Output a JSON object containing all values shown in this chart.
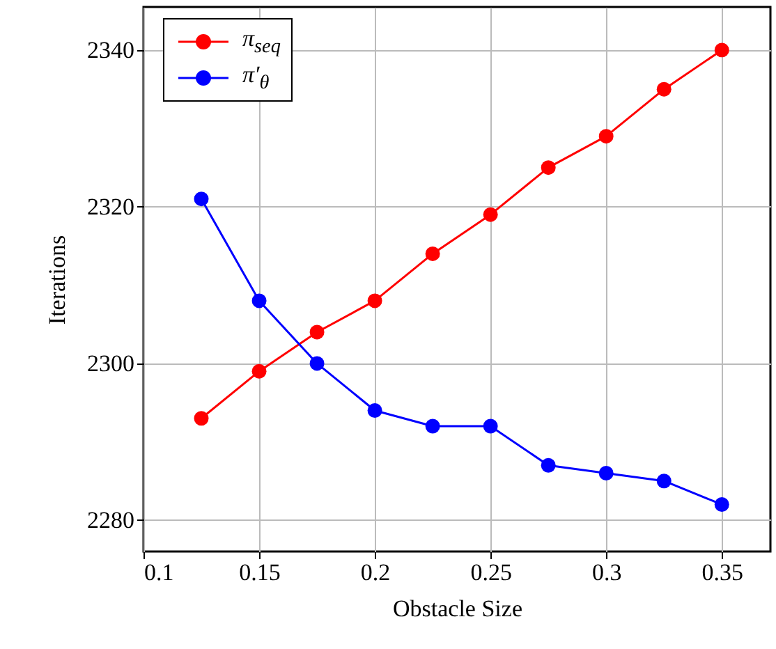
{
  "chart_data": {
    "type": "line",
    "xlabel": "Obstacle Size",
    "ylabel": "Iterations",
    "x": [
      0.125,
      0.15,
      0.175,
      0.2,
      0.225,
      0.25,
      0.275,
      0.3,
      0.325,
      0.35
    ],
    "series": [
      {
        "name": "π$_{seq}$",
        "color": "#ff0000",
        "values": [
          2293,
          2299,
          2304,
          2308,
          2314,
          2319,
          2325,
          2329,
          2335,
          2340
        ]
      },
      {
        "name": "π′$_{θ}$",
        "color": "#0000ff",
        "values": [
          2321,
          2308,
          2300,
          2294,
          2292,
          2292,
          2287,
          2286,
          2285,
          2282
        ]
      }
    ],
    "xlim": [
      0.1,
      0.371
    ],
    "xticks": [
      0.1,
      0.15,
      0.2,
      0.25,
      0.3,
      0.35
    ],
    "ylim": [
      2276,
      2345.5
    ],
    "yticks": [
      2280,
      2300,
      2320,
      2340
    ],
    "grid": true,
    "legend": "top left",
    "marker": "circle",
    "line_style": "solid"
  }
}
